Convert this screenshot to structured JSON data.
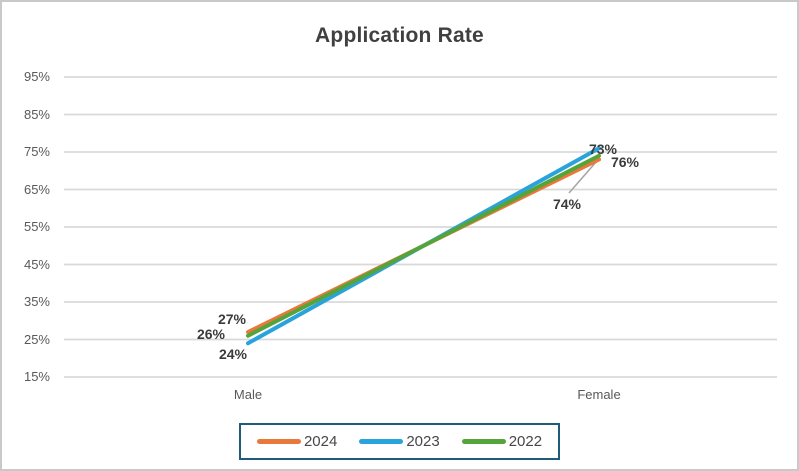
{
  "chart_data": {
    "type": "line",
    "title": "Application Rate",
    "categories": [
      "Male",
      "Female"
    ],
    "series": [
      {
        "name": "2024",
        "color": "#E8793A",
        "values": [
          27,
          73
        ],
        "labels": [
          "27%",
          "73%"
        ]
      },
      {
        "name": "2023",
        "color": "#29A3DB",
        "values": [
          24,
          76
        ],
        "labels": [
          "24%",
          "76%"
        ]
      },
      {
        "name": "2022",
        "color": "#55A43B",
        "values": [
          26,
          74
        ],
        "labels": [
          "26%",
          "74%"
        ]
      }
    ],
    "y_axis": {
      "min": 15,
      "max": 95,
      "step": 10,
      "tick_labels": [
        "95%",
        "85%",
        "75%",
        "65%",
        "55%",
        "45%",
        "35%",
        "25%",
        "15%"
      ]
    },
    "grid": true,
    "legend_position": "bottom",
    "colors": {
      "gridline": "#D9D9D9",
      "axis_text": "#595959",
      "title_text": "#404040",
      "data_label_text": "#3B3B3B",
      "legend_text": "#474747",
      "legend_border": "#1F5C7C",
      "leader_line": "#A6A6A6"
    }
  }
}
